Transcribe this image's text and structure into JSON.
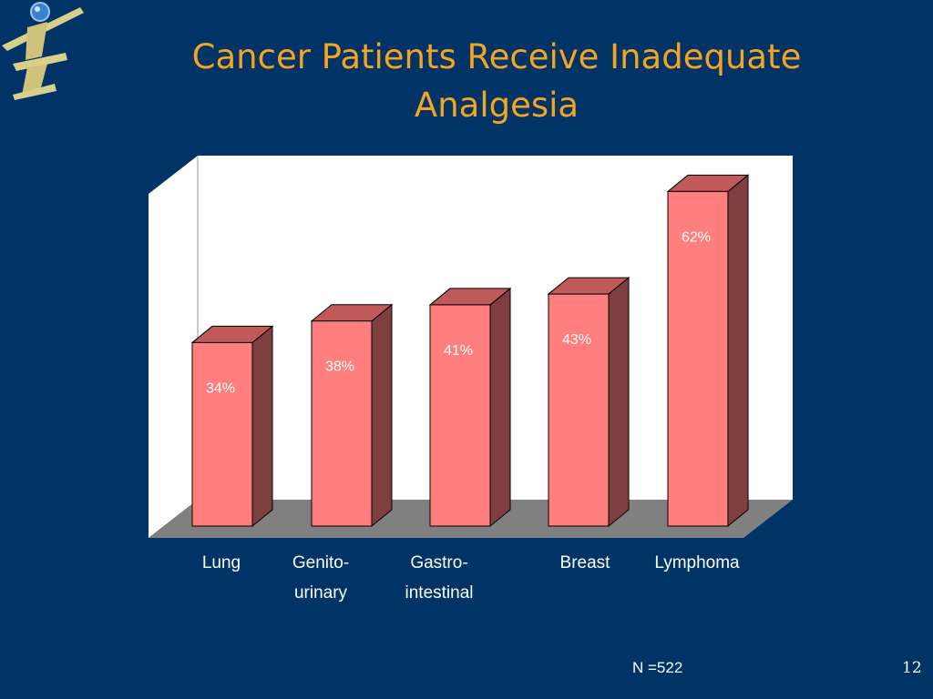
{
  "slide": {
    "title_line1": "Cancer Patients Receive Inadequate",
    "title_line2": "Analgesia",
    "footnote": "N =522",
    "slide_number": "12"
  },
  "logo": {
    "icon": "medical-logo-icon"
  },
  "colors": {
    "background": "#003366",
    "title": "#f5a422",
    "bar_front": "#ff7f7f",
    "bar_side": "#7f3f3f",
    "bar_top": "#c05a5a",
    "plot_wall": "#ffffff",
    "plot_floor": "#808080"
  },
  "chart_data": {
    "type": "bar",
    "style": "3d",
    "categories": [
      [
        "Lung"
      ],
      [
        "Genito-",
        "urinary"
      ],
      [
        "Gastro-",
        "intestinal"
      ],
      [
        "Breast"
      ],
      [
        "Lymphoma"
      ]
    ],
    "values": [
      34,
      38,
      41,
      43,
      62
    ],
    "data_labels": [
      "34%",
      "38%",
      "41%",
      "43%",
      "62%"
    ],
    "ylim": [
      0,
      70
    ],
    "grid": false,
    "legend": "none"
  }
}
